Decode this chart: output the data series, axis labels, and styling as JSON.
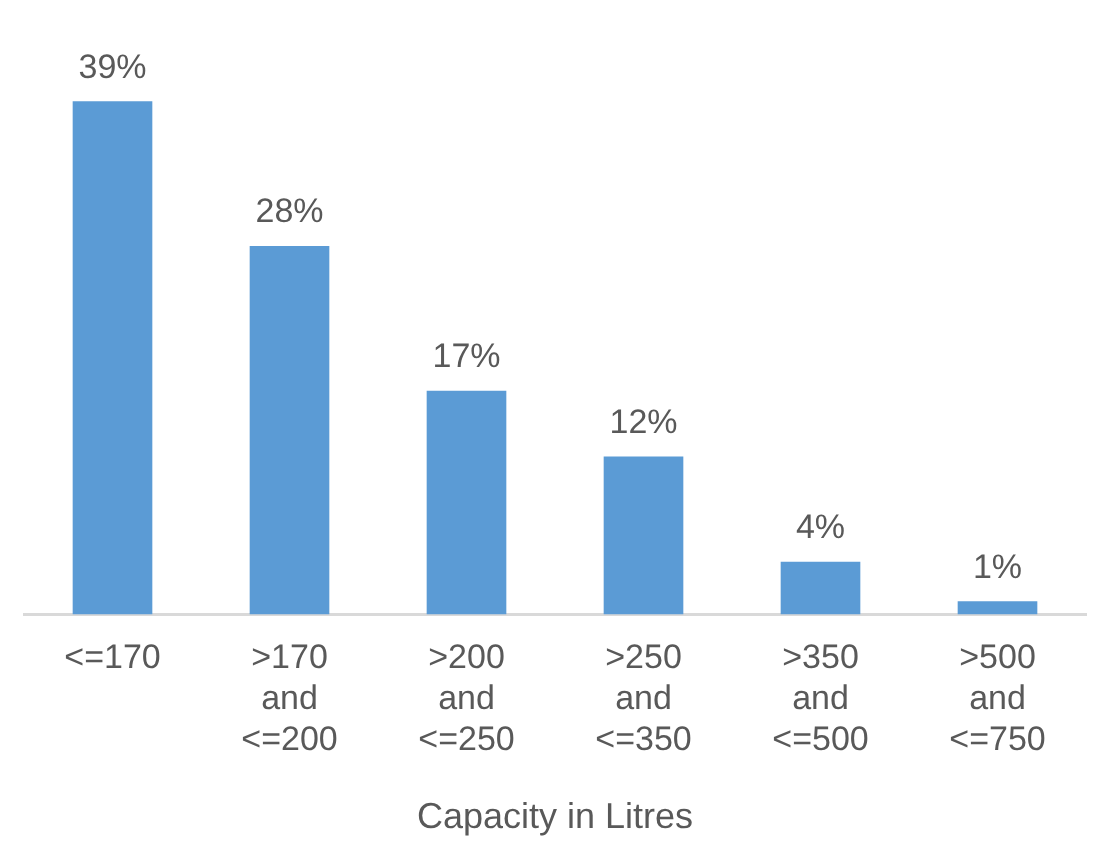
{
  "chart_data": {
    "type": "bar",
    "xlabel": "Capacity in Litres",
    "categories": [
      "<=170",
      ">170 and <=200",
      ">200 and <=250",
      ">250 and <=350",
      ">350 and <=500",
      ">500 and <=750"
    ],
    "values": [
      39,
      28,
      17,
      12,
      4,
      1
    ],
    "value_labels": [
      "39%",
      "28%",
      "17%",
      "12%",
      "4%",
      "1%"
    ],
    "color": "#5b9bd5",
    "grid": false,
    "legend": false
  }
}
